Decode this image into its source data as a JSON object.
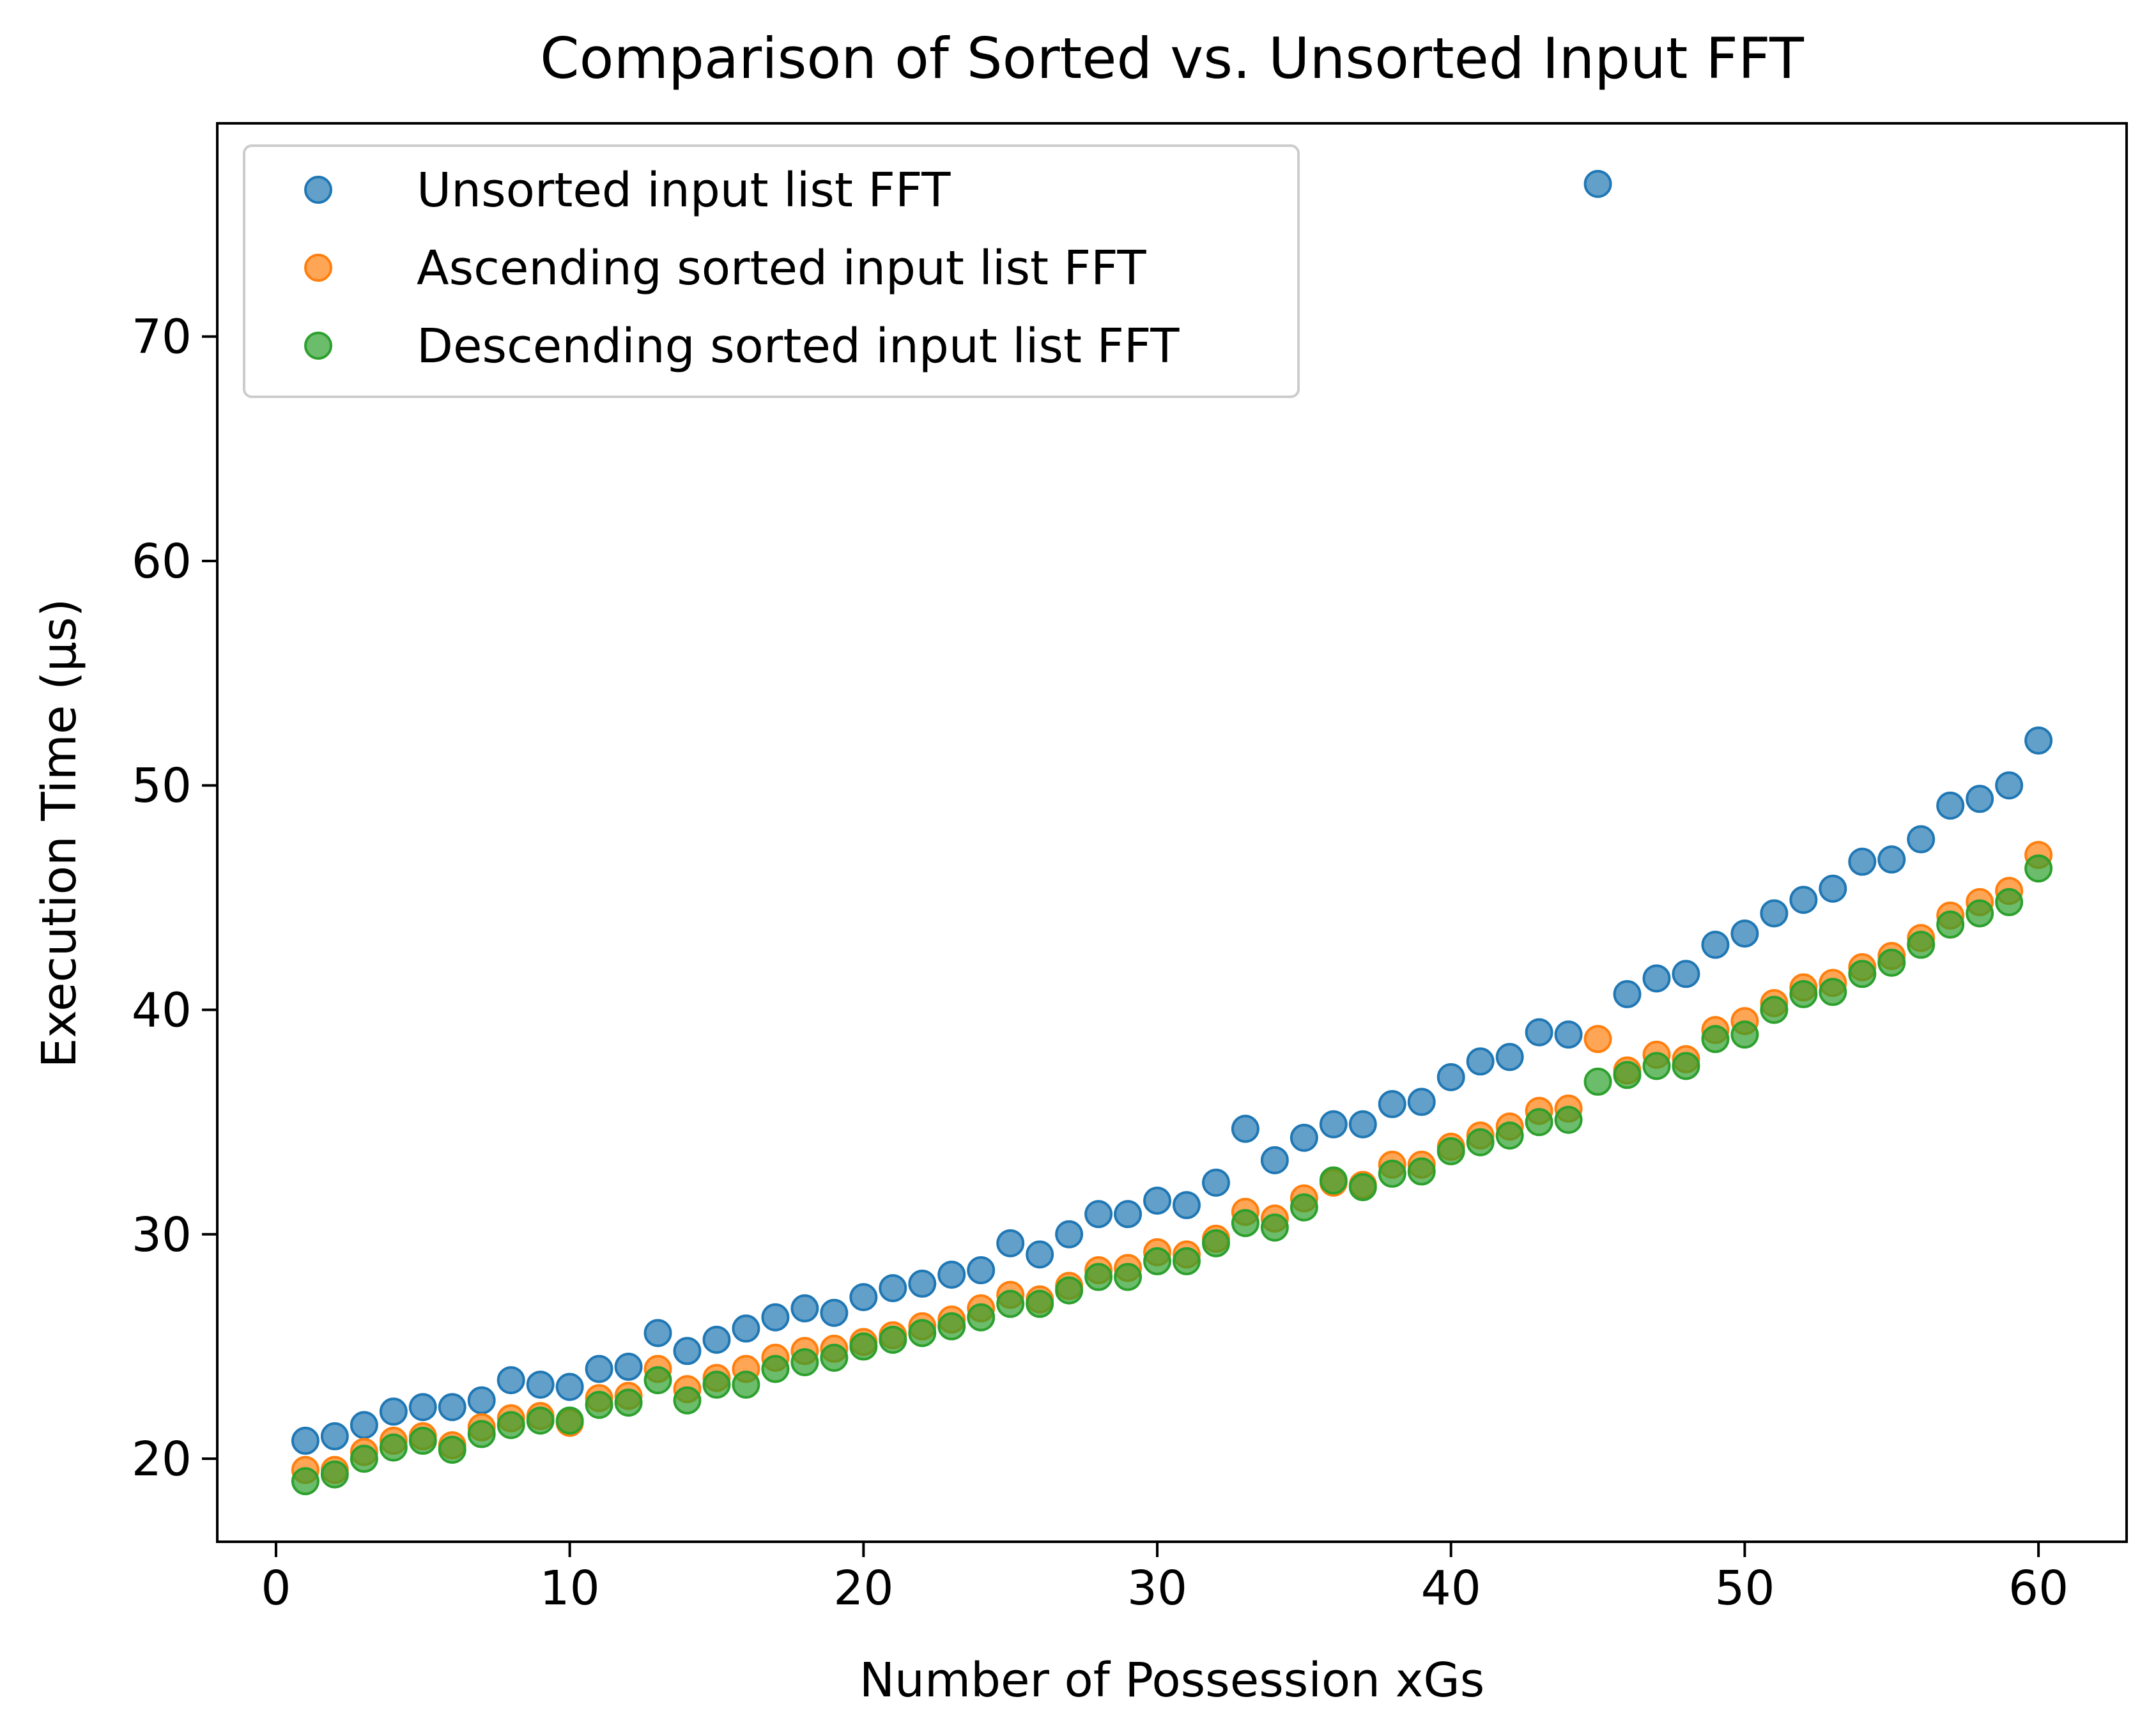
{
  "chart_data": {
    "type": "scatter",
    "title": "Comparison of Sorted vs. Unsorted Input FFT",
    "xlabel": "Number of Possession xGs",
    "ylabel": "Execution Time (µs)",
    "xlim": [
      -2,
      63
    ],
    "ylim": [
      16.3,
      79.5
    ],
    "xticks": [
      0,
      10,
      20,
      30,
      40,
      50,
      60
    ],
    "yticks": [
      20,
      30,
      40,
      50,
      60,
      70
    ],
    "grid": false,
    "legend_position": "upper-left",
    "x": [
      1,
      2,
      3,
      4,
      5,
      6,
      7,
      8,
      9,
      10,
      11,
      12,
      13,
      14,
      15,
      16,
      17,
      18,
      19,
      20,
      21,
      22,
      23,
      24,
      25,
      26,
      27,
      28,
      29,
      30,
      31,
      32,
      33,
      34,
      35,
      36,
      37,
      38,
      39,
      40,
      41,
      42,
      43,
      44,
      45,
      46,
      47,
      48,
      49,
      50,
      51,
      52,
      53,
      54,
      55,
      56,
      57,
      58,
      59,
      60
    ],
    "series": [
      {
        "name": "Unsorted input list FFT",
        "color": "#1f77b4",
        "values": [
          20.8,
          21.0,
          21.5,
          22.1,
          22.3,
          22.3,
          22.6,
          23.5,
          23.3,
          23.2,
          24.0,
          24.1,
          25.6,
          24.8,
          25.3,
          25.8,
          26.3,
          26.7,
          26.5,
          27.2,
          27.6,
          27.8,
          28.2,
          28.4,
          29.6,
          29.1,
          30.0,
          30.9,
          30.9,
          31.5,
          31.3,
          32.3,
          34.7,
          33.3,
          34.3,
          34.9,
          34.9,
          35.8,
          35.9,
          37.0,
          37.7,
          37.9,
          39.0,
          38.9,
          76.8,
          40.7,
          41.4,
          41.6,
          42.9,
          43.4,
          44.3,
          44.9,
          45.4,
          46.6,
          46.7,
          47.6,
          49.1,
          49.4,
          50.0,
          52.0
        ]
      },
      {
        "name": "Ascending sorted input list FFT",
        "color": "#ff7f0e",
        "values": [
          19.5,
          19.5,
          20.3,
          20.8,
          21.0,
          20.6,
          21.4,
          21.8,
          21.9,
          21.6,
          22.7,
          22.8,
          24.0,
          23.1,
          23.6,
          24.0,
          24.5,
          24.8,
          24.9,
          25.2,
          25.5,
          25.9,
          26.2,
          26.7,
          27.3,
          27.1,
          27.7,
          28.4,
          28.5,
          29.2,
          29.1,
          29.8,
          31.0,
          30.7,
          31.6,
          32.3,
          32.2,
          33.1,
          33.1,
          33.9,
          34.4,
          34.8,
          35.5,
          35.6,
          38.7,
          37.3,
          38.0,
          37.8,
          39.1,
          39.5,
          40.3,
          41.0,
          41.2,
          41.9,
          42.4,
          43.2,
          44.2,
          44.8,
          45.3,
          46.9
        ]
      },
      {
        "name": "Descending sorted input list FFT",
        "color": "#2ca02c",
        "values": [
          19.0,
          19.3,
          20.0,
          20.5,
          20.8,
          20.4,
          21.1,
          21.5,
          21.7,
          21.7,
          22.4,
          22.5,
          23.5,
          22.6,
          23.3,
          23.3,
          24.0,
          24.3,
          24.5,
          25.0,
          25.3,
          25.6,
          25.9,
          26.3,
          26.9,
          26.9,
          27.5,
          28.1,
          28.1,
          28.8,
          28.8,
          29.6,
          30.5,
          30.3,
          31.2,
          32.4,
          32.1,
          32.7,
          32.8,
          33.7,
          34.1,
          34.4,
          35.0,
          35.1,
          36.8,
          37.1,
          37.5,
          37.5,
          38.7,
          38.9,
          40.0,
          40.7,
          40.8,
          41.6,
          42.1,
          42.9,
          43.8,
          44.3,
          44.8,
          46.3
        ]
      }
    ]
  }
}
